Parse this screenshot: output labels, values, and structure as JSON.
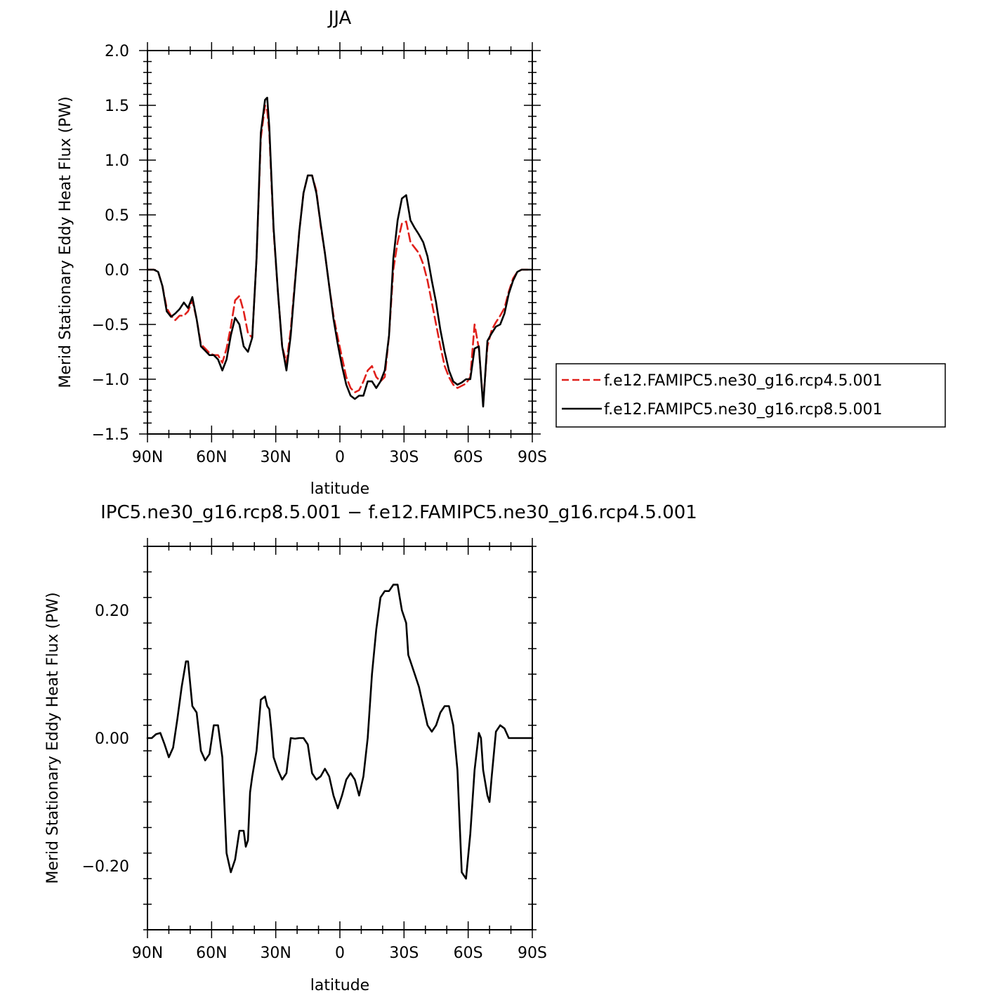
{
  "chart_data": [
    {
      "type": "line",
      "title": "JJA",
      "xlabel": "latitude",
      "ylabel": "Merid Stationary Eddy Heat Flux (PW)",
      "xlim": [
        -90,
        90
      ],
      "ylim": [
        -1.5,
        2.0
      ],
      "x_ticks": [
        -90,
        -60,
        -30,
        0,
        30,
        60,
        90
      ],
      "x_tick_labels": [
        "90N",
        "60N",
        "30N",
        "0",
        "30S",
        "60S",
        "90S"
      ],
      "y_ticks": [
        -1.5,
        -1.0,
        -0.5,
        0.0,
        0.5,
        1.0,
        1.5,
        2.0
      ],
      "y_tick_labels": [
        "−1.5",
        "−1.0",
        "−0.5",
        "0.0",
        "0.5",
        "1.0",
        "1.5",
        "2.0"
      ],
      "grid": false,
      "legend_position": "right, outside plot",
      "series": [
        {
          "name": "f.e12.FAMIPC5.ne30_g16.rcp4.5.001",
          "color": "#e0201b",
          "dash": "dashed",
          "x": [
            -90,
            -87,
            -85,
            -83,
            -81,
            -79,
            -77,
            -75,
            -73,
            -71,
            -69,
            -67,
            -65,
            -63,
            -61,
            -59,
            -57,
            -55,
            -53,
            -51,
            -49,
            -47,
            -45,
            -43,
            -41,
            -39,
            -37,
            -35,
            -34,
            -33,
            -31,
            -29,
            -27,
            -25,
            -23,
            -21,
            -19,
            -17,
            -15,
            -13,
            -11,
            -9,
            -7,
            -5,
            -3,
            -1,
            1,
            3,
            5,
            7,
            9,
            11,
            13,
            15,
            17,
            19,
            21,
            23,
            25,
            27,
            29,
            31,
            33,
            35,
            37,
            39,
            41,
            43,
            45,
            47,
            49,
            51,
            53,
            55,
            57,
            59,
            61,
            63,
            65,
            67,
            69,
            71,
            73,
            75,
            77,
            79,
            81,
            83,
            85,
            87,
            90
          ],
          "y": [
            0.0,
            0.0,
            -0.02,
            -0.15,
            -0.35,
            -0.42,
            -0.46,
            -0.42,
            -0.42,
            -0.38,
            -0.28,
            -0.45,
            -0.68,
            -0.72,
            -0.76,
            -0.78,
            -0.78,
            -0.85,
            -0.72,
            -0.52,
            -0.28,
            -0.24,
            -0.38,
            -0.58,
            -0.62,
            0.1,
            1.2,
            1.5,
            1.45,
            1.25,
            0.35,
            -0.2,
            -0.7,
            -0.85,
            -0.55,
            -0.1,
            0.35,
            0.7,
            0.86,
            0.86,
            0.72,
            0.4,
            0.15,
            -0.15,
            -0.42,
            -0.62,
            -0.8,
            -0.98,
            -1.08,
            -1.12,
            -1.1,
            -1.02,
            -0.92,
            -0.88,
            -0.98,
            -1.02,
            -0.98,
            -0.6,
            0.0,
            0.25,
            0.42,
            0.44,
            0.25,
            0.2,
            0.15,
            0.05,
            -0.1,
            -0.3,
            -0.5,
            -0.7,
            -0.88,
            -0.98,
            -1.05,
            -1.08,
            -1.06,
            -1.04,
            -0.98,
            -0.5,
            -0.72,
            -1.22,
            -0.7,
            -0.55,
            -0.48,
            -0.42,
            -0.35,
            -0.2,
            -0.08,
            -0.02,
            0.0,
            0.0,
            0.0
          ]
        },
        {
          "name": "f.e12.FAMIPC5.ne30_g16.rcp8.5.001",
          "color": "#000000",
          "dash": "solid",
          "x": [
            -90,
            -87,
            -85,
            -83,
            -81,
            -79,
            -77,
            -75,
            -73,
            -71,
            -69,
            -67,
            -65,
            -63,
            -61,
            -59,
            -57,
            -55,
            -53,
            -51,
            -49,
            -47,
            -45,
            -43,
            -41,
            -39,
            -37,
            -35,
            -34,
            -33,
            -31,
            -29,
            -27,
            -25,
            -23,
            -21,
            -19,
            -17,
            -15,
            -13,
            -11,
            -9,
            -7,
            -5,
            -3,
            -1,
            1,
            3,
            5,
            7,
            9,
            11,
            13,
            15,
            17,
            19,
            21,
            23,
            25,
            27,
            29,
            31,
            33,
            35,
            37,
            39,
            41,
            43,
            45,
            47,
            49,
            51,
            53,
            55,
            57,
            59,
            61,
            63,
            65,
            67,
            69,
            71,
            73,
            75,
            77,
            79,
            81,
            83,
            85,
            87,
            90
          ],
          "y": [
            0.0,
            0.0,
            -0.02,
            -0.15,
            -0.38,
            -0.43,
            -0.4,
            -0.36,
            -0.3,
            -0.35,
            -0.25,
            -0.45,
            -0.7,
            -0.74,
            -0.78,
            -0.78,
            -0.82,
            -0.92,
            -0.82,
            -0.6,
            -0.44,
            -0.5,
            -0.7,
            -0.75,
            -0.62,
            0.1,
            1.25,
            1.55,
            1.57,
            1.3,
            0.38,
            -0.2,
            -0.7,
            -0.92,
            -0.6,
            -0.12,
            0.35,
            0.7,
            0.86,
            0.86,
            0.7,
            0.42,
            0.15,
            -0.15,
            -0.45,
            -0.68,
            -0.88,
            -1.05,
            -1.15,
            -1.18,
            -1.15,
            -1.15,
            -1.02,
            -1.02,
            -1.08,
            -1.02,
            -0.92,
            -0.6,
            0.1,
            0.45,
            0.65,
            0.68,
            0.45,
            0.38,
            0.32,
            0.25,
            0.12,
            -0.1,
            -0.3,
            -0.55,
            -0.75,
            -0.92,
            -1.02,
            -1.05,
            -1.03,
            -1.0,
            -1.0,
            -0.72,
            -0.7,
            -1.25,
            -0.65,
            -0.58,
            -0.52,
            -0.5,
            -0.4,
            -0.22,
            -0.1,
            -0.02,
            0.0,
            0.0,
            0.0
          ]
        }
      ]
    },
    {
      "type": "line",
      "title": "IPC5.ne30_g16.rcp8.5.001 − f.e12.FAMIPC5.ne30_g16.rcp4.5.001",
      "xlabel": "latitude",
      "ylabel": "Merid Stationary Eddy Heat Flux (PW)",
      "xlim": [
        -90,
        90
      ],
      "ylim": [
        -0.3,
        0.3
      ],
      "x_ticks": [
        -90,
        -60,
        -30,
        0,
        30,
        60,
        90
      ],
      "x_tick_labels": [
        "90N",
        "60N",
        "30N",
        "0",
        "30S",
        "60S",
        "90S"
      ],
      "y_ticks": [
        -0.2,
        0.0,
        0.2
      ],
      "y_tick_labels": [
        "−0.20",
        "0.00",
        "0.20"
      ],
      "grid": false,
      "series": [
        {
          "name": "",
          "color": "#000000",
          "dash": "solid",
          "x": [
            -90,
            -88,
            -86,
            -84,
            -82,
            -80,
            -78,
            -76,
            -74,
            -72,
            -71,
            -69,
            -67,
            -65,
            -63,
            -61,
            -59,
            -57,
            -55,
            -53,
            -51,
            -49,
            -47,
            -45,
            -44,
            -43,
            -42,
            -41,
            -39,
            -37,
            -35,
            -34,
            -33,
            -32,
            -31,
            -29,
            -27,
            -25,
            -23,
            -21,
            -19,
            -17,
            -15,
            -13,
            -11,
            -9,
            -7,
            -5,
            -3,
            -1,
            1,
            3,
            5,
            7,
            9,
            11,
            13,
            15,
            17,
            19,
            21,
            23,
            25,
            27,
            28,
            29,
            31,
            32,
            33,
            35,
            37,
            39,
            41,
            43,
            45,
            47,
            49,
            51,
            53,
            55,
            57,
            59,
            61,
            63,
            65,
            66,
            67,
            69,
            70,
            71,
            73,
            75,
            77,
            79,
            81,
            83,
            85,
            87,
            90
          ],
          "y": [
            0.0,
            0.0,
            0.006,
            0.008,
            -0.01,
            -0.03,
            -0.015,
            0.03,
            0.08,
            0.12,
            0.12,
            0.05,
            0.04,
            -0.02,
            -0.035,
            -0.025,
            0.02,
            0.02,
            -0.03,
            -0.18,
            -0.21,
            -0.19,
            -0.145,
            -0.145,
            -0.17,
            -0.16,
            -0.085,
            -0.06,
            -0.02,
            0.06,
            0.065,
            0.05,
            0.045,
            0.01,
            -0.03,
            -0.05,
            -0.065,
            -0.055,
            0.0,
            -0.001,
            0.0,
            0.0,
            -0.01,
            -0.055,
            -0.065,
            -0.06,
            -0.048,
            -0.06,
            -0.09,
            -0.11,
            -0.09,
            -0.065,
            -0.055,
            -0.065,
            -0.09,
            -0.06,
            0.0,
            0.1,
            0.17,
            0.22,
            0.23,
            0.23,
            0.24,
            0.24,
            0.22,
            0.2,
            0.18,
            0.13,
            0.12,
            0.1,
            0.08,
            0.05,
            0.02,
            0.01,
            0.02,
            0.04,
            0.05,
            0.05,
            0.02,
            -0.05,
            -0.21,
            -0.22,
            -0.15,
            -0.05,
            0.008,
            0.0,
            -0.05,
            -0.09,
            -0.1,
            -0.06,
            0.01,
            0.02,
            0.015,
            0.0,
            0.0,
            0.0,
            0.0,
            0.0,
            0.0
          ]
        }
      ]
    }
  ]
}
